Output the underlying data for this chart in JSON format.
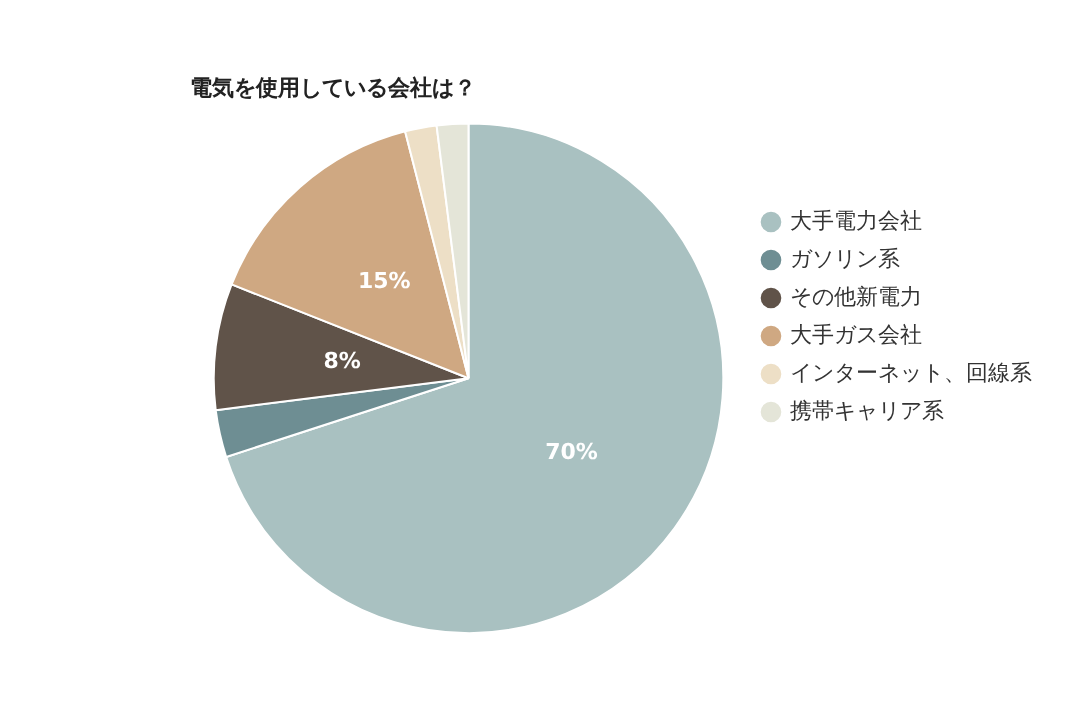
{
  "chart_data": {
    "type": "pie",
    "title": "電気を使用している会社は？",
    "categories": [
      "大手電力会社",
      "ガソリン系",
      "その他新電力",
      "大手ガス会社",
      "インターネット、回線系",
      "携帯キャリア系"
    ],
    "values": [
      70,
      3,
      8,
      15,
      2,
      2
    ],
    "colors": [
      "#a9c1c1",
      "#6e8e93",
      "#605349",
      "#cfa882",
      "#eddfc6",
      "#e4e5d8"
    ],
    "value_labels": [
      "70%",
      null,
      "8%",
      "15%",
      null,
      null
    ],
    "legend": "right"
  }
}
